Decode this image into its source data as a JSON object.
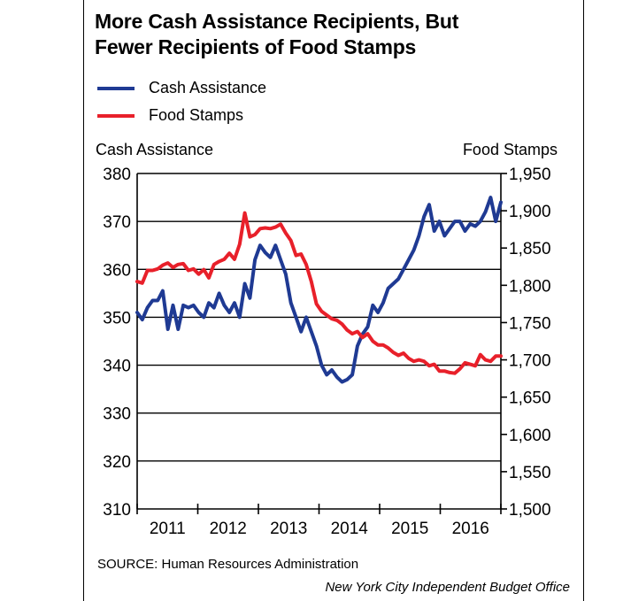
{
  "header": {
    "title_line1": "More Cash Assistance Recipients, But",
    "title_line2": "Fewer Recipients of Food Stamps"
  },
  "legend": [
    {
      "label": "Cash Assistance",
      "color": "#1f3a93"
    },
    {
      "label": "Food Stamps",
      "color": "#e8202a"
    }
  ],
  "axes": {
    "left_title": "Cash Assistance",
    "right_title": "Food Stamps"
  },
  "footer": {
    "source": "SOURCE: Human Resources Administration",
    "credit": "New York City Independent Budget Office"
  },
  "chart_data": {
    "type": "line",
    "title": "More Cash Assistance Recipients, But Fewer Recipients of Food Stamps",
    "x_start": "2011-01",
    "x_end": "2016-12",
    "x_tick_labels": [
      "2011",
      "2012",
      "2013",
      "2014",
      "2015",
      "2016"
    ],
    "y_left": {
      "label": "Cash Assistance",
      "lim": [
        310,
        380
      ],
      "ticks": [
        310,
        320,
        330,
        340,
        350,
        360,
        370,
        380
      ],
      "tick_labels": [
        "310",
        "320",
        "330",
        "340",
        "350",
        "360",
        "370",
        "380"
      ]
    },
    "y_right": {
      "label": "Food Stamps",
      "lim": [
        1500,
        1950
      ],
      "ticks": [
        1500,
        1550,
        1600,
        1650,
        1700,
        1750,
        1800,
        1850,
        1900,
        1950
      ],
      "tick_labels": [
        "1,500",
        "1,550",
        "1,600",
        "1,650",
        "1,700",
        "1,750",
        "1,800",
        "1,850",
        "1,900",
        "1,950"
      ]
    },
    "grid": "horizontal",
    "series": [
      {
        "name": "Cash Assistance",
        "axis": "left",
        "color": "#1f3a93",
        "values": [
          351,
          349.5,
          352,
          353.5,
          353.5,
          355.5,
          347.5,
          352.5,
          347.5,
          352.5,
          352,
          352.5,
          351,
          350,
          353,
          352,
          355,
          352.5,
          351,
          353,
          350,
          357,
          354,
          362,
          365,
          363.5,
          362.5,
          365,
          362,
          359,
          353,
          350,
          347,
          350,
          347,
          344,
          340,
          338,
          339,
          337.5,
          336.5,
          337,
          338,
          344,
          346.5,
          348,
          352.5,
          351,
          353,
          356,
          357,
          358,
          360,
          362,
          364,
          367,
          371,
          373.5,
          368,
          370,
          367,
          368.5,
          370,
          370,
          368,
          369.5,
          369,
          370,
          372,
          375,
          370,
          374
        ]
      },
      {
        "name": "Food Stamps",
        "axis": "right",
        "color": "#e8202a",
        "values": [
          1805,
          1803,
          1820,
          1820,
          1822,
          1827,
          1830,
          1824,
          1828,
          1829,
          1820,
          1822,
          1815,
          1821,
          1810,
          1828,
          1832,
          1835,
          1843,
          1835,
          1855,
          1897,
          1865,
          1868,
          1876,
          1877,
          1876,
          1878,
          1882,
          1870,
          1860,
          1840,
          1842,
          1828,
          1805,
          1775,
          1765,
          1760,
          1755,
          1753,
          1748,
          1740,
          1735,
          1738,
          1730,
          1735,
          1725,
          1720,
          1720,
          1716,
          1710,
          1706,
          1709,
          1702,
          1698,
          1700,
          1698,
          1692,
          1694,
          1685,
          1685,
          1683,
          1682,
          1688,
          1696,
          1694,
          1692,
          1707,
          1700,
          1698,
          1705,
          1705
        ]
      }
    ]
  }
}
